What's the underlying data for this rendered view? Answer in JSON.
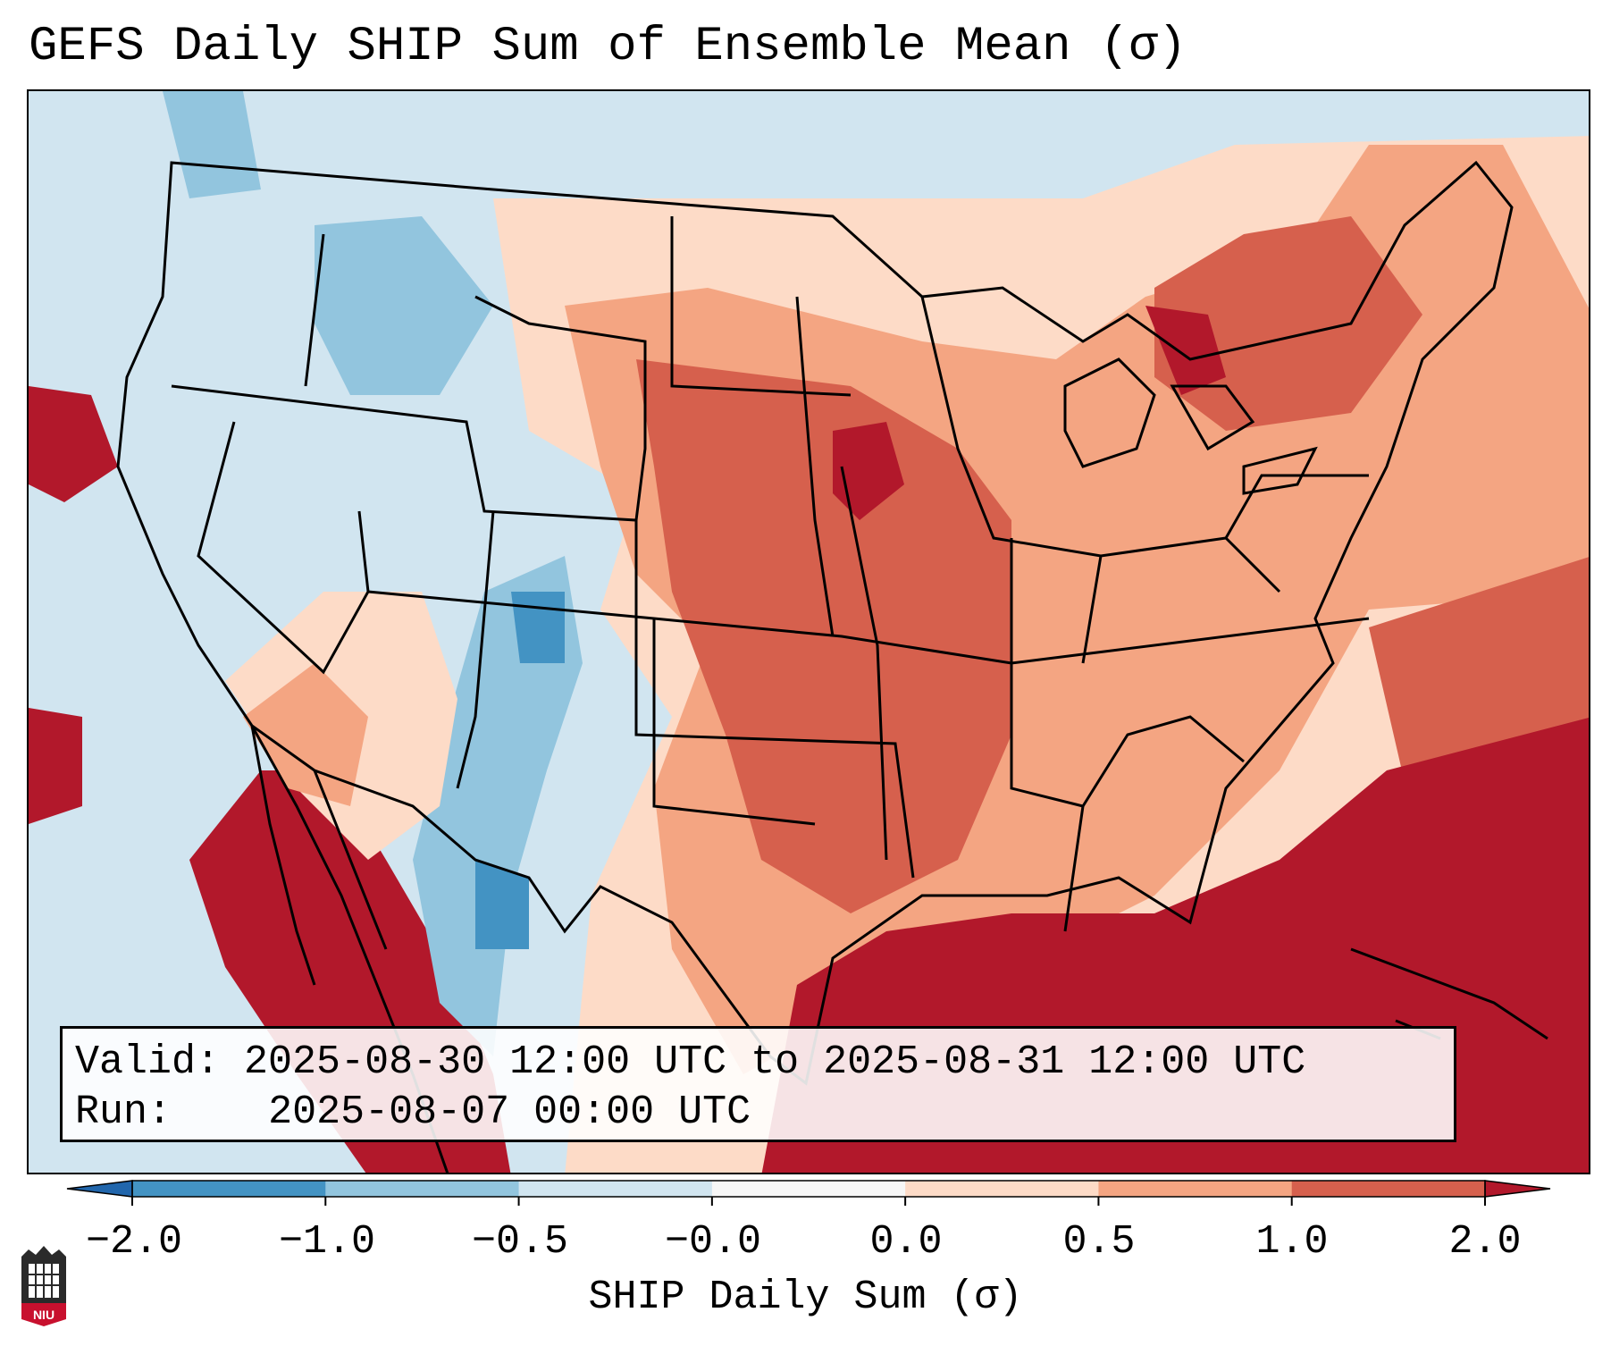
{
  "title": "GEFS Daily SHIP Sum of Ensemble Mean (σ)",
  "info": {
    "valid_label": "Valid:",
    "valid_value": "2025-08-30 12:00 UTC to 2025-08-31 12:00 UTC",
    "run_label": "Run:",
    "run_value": "2025-08-07 00:00 UTC"
  },
  "colorbar": {
    "label": "SHIP Daily Sum (σ)",
    "ticks": [
      "−2.0",
      "−1.0",
      "−0.5",
      "−0.0",
      "0.0",
      "0.5",
      "1.0",
      "2.0"
    ],
    "bins": [
      {
        "from": -2.0,
        "to": -1.0,
        "color": "#4393c3"
      },
      {
        "from": -1.0,
        "to": -0.5,
        "color": "#92c5de"
      },
      {
        "from": -0.5,
        "to": -0.0,
        "color": "#d1e5f0"
      },
      {
        "from": -0.0,
        "to": 0.0,
        "color": "#f7f7f7"
      },
      {
        "from": 0.0,
        "to": 0.5,
        "color": "#fddbc7"
      },
      {
        "from": 0.5,
        "to": 1.0,
        "color": "#f4a582"
      },
      {
        "from": 1.0,
        "to": 2.0,
        "color": "#d6604d"
      }
    ],
    "under_color": "#2166ac",
    "over_color": "#b2182b"
  },
  "logo": {
    "text": "NIU"
  }
}
